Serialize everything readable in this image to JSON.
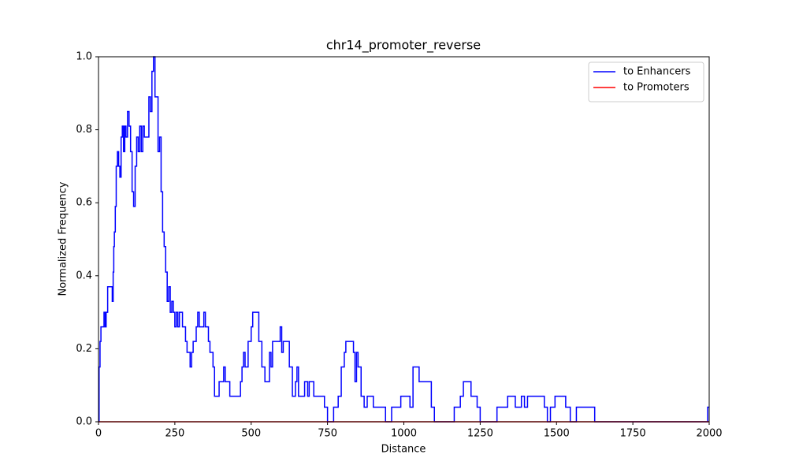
{
  "chart_data": {
    "type": "line",
    "title": "chr14_promoter_reverse",
    "x_label": "Distance",
    "y_label": "Normalized Frequency",
    "xlim": [
      0,
      2000
    ],
    "ylim": [
      0,
      1
    ],
    "xticks": [
      0,
      250,
      500,
      750,
      1000,
      1250,
      1500,
      1750,
      2000
    ],
    "yticks": [
      {
        "value": 0,
        "label": "0.0"
      },
      0.2,
      0.4,
      0.6,
      0.8,
      {
        "value": 1,
        "label": "1.0"
      }
    ],
    "legend": "upper right",
    "step": "post",
    "series": [
      {
        "name": "to Enhancers",
        "color": "#0000ff",
        "x": [
          0,
          2,
          5,
          8,
          15,
          18,
          22,
          25,
          30,
          40,
          45,
          48,
          50,
          52,
          55,
          58,
          62,
          66,
          70,
          74,
          78,
          82,
          86,
          90,
          95,
          100,
          105,
          110,
          115,
          120,
          125,
          130,
          135,
          140,
          145,
          150,
          160,
          165,
          170,
          175,
          180,
          185,
          190,
          195,
          200,
          205,
          210,
          215,
          220,
          225,
          230,
          235,
          240,
          245,
          250,
          255,
          260,
          265,
          275,
          285,
          290,
          300,
          305,
          310,
          320,
          325,
          330,
          345,
          350,
          360,
          365,
          375,
          380,
          390,
          395,
          405,
          410,
          415,
          430,
          460,
          465,
          470,
          475,
          480,
          490,
          500,
          505,
          520,
          525,
          535,
          545,
          555,
          560,
          565,
          570,
          590,
          595,
          600,
          605,
          620,
          625,
          635,
          645,
          650,
          655,
          670,
          675,
          685,
          690,
          705,
          740,
          750,
          765,
          770,
          785,
          795,
          805,
          810,
          830,
          835,
          840,
          845,
          850,
          860,
          870,
          880,
          900,
          940,
          955,
          960,
          990,
          1020,
          1030,
          1050,
          1080,
          1090,
          1100,
          1160,
          1165,
          1185,
          1195,
          1220,
          1240,
          1250,
          1300,
          1305,
          1340,
          1365,
          1385,
          1395,
          1405,
          1460,
          1470,
          1480,
          1495,
          1530,
          1545,
          1565,
          1625,
          1990,
          1995,
          2000
        ],
        "values": [
          0,
          0.15,
          0.22,
          0.26,
          0.26,
          0.3,
          0.26,
          0.3,
          0.37,
          0.37,
          0.33,
          0.41,
          0.48,
          0.52,
          0.59,
          0.7,
          0.74,
          0.7,
          0.67,
          0.78,
          0.81,
          0.74,
          0.81,
          0.78,
          0.85,
          0.81,
          0.74,
          0.63,
          0.59,
          0.7,
          0.78,
          0.74,
          0.81,
          0.74,
          0.81,
          0.78,
          0.78,
          0.89,
          0.85,
          0.96,
          1.0,
          0.89,
          0.89,
          0.74,
          0.78,
          0.63,
          0.52,
          0.48,
          0.41,
          0.33,
          0.37,
          0.3,
          0.33,
          0.3,
          0.26,
          0.3,
          0.26,
          0.3,
          0.26,
          0.22,
          0.19,
          0.15,
          0.19,
          0.22,
          0.26,
          0.3,
          0.26,
          0.3,
          0.26,
          0.22,
          0.19,
          0.15,
          0.07,
          0.07,
          0.11,
          0.11,
          0.15,
          0.11,
          0.07,
          0.07,
          0.11,
          0.15,
          0.19,
          0.15,
          0.22,
          0.26,
          0.3,
          0.3,
          0.22,
          0.15,
          0.11,
          0.11,
          0.19,
          0.15,
          0.22,
          0.22,
          0.26,
          0.19,
          0.22,
          0.22,
          0.15,
          0.07,
          0.11,
          0.15,
          0.07,
          0.07,
          0.11,
          0.07,
          0.11,
          0.07,
          0.04,
          0,
          0,
          0.04,
          0.07,
          0.15,
          0.19,
          0.22,
          0.22,
          0.19,
          0.11,
          0.19,
          0.15,
          0.07,
          0.04,
          0.07,
          0.04,
          0,
          0,
          0.04,
          0.07,
          0.04,
          0.15,
          0.11,
          0.11,
          0.04,
          0,
          0,
          0.04,
          0.07,
          0.11,
          0.07,
          0.04,
          0,
          0,
          0.04,
          0.07,
          0.04,
          0.07,
          0.04,
          0.07,
          0.04,
          0,
          0.04,
          0.07,
          0.04,
          0,
          0.04,
          0,
          0,
          0.04,
          0.04
        ]
      },
      {
        "name": "to Promoters",
        "color": "#ff0000",
        "x": [
          0,
          2000
        ],
        "values": [
          0,
          0
        ]
      }
    ]
  }
}
